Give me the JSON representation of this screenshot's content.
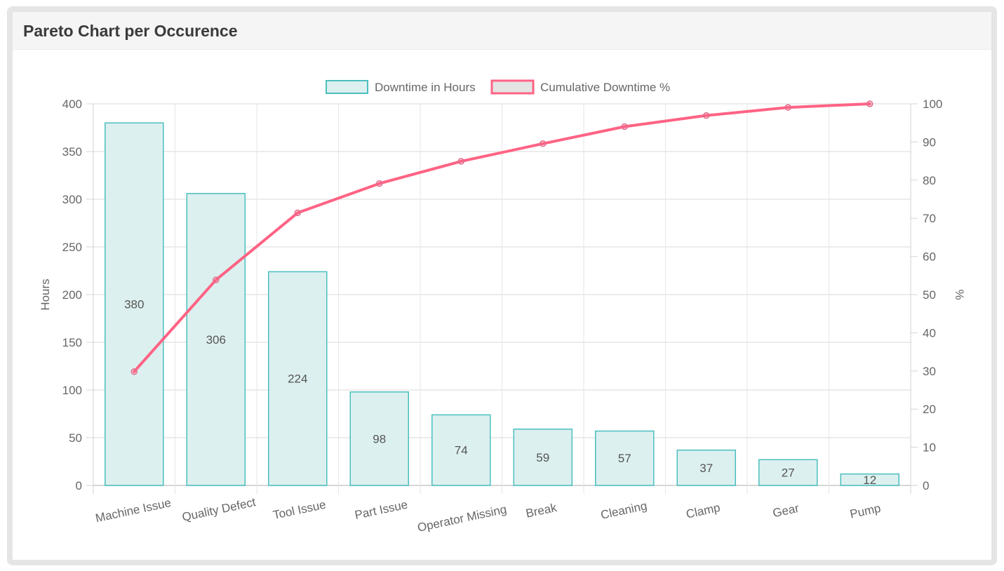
{
  "panel": {
    "title": "Pareto Chart per Occurence"
  },
  "colors": {
    "bar_fill": "#dcf0ef",
    "bar_border": "#4bbfbf",
    "line": "#ff6384",
    "point": "#e06f8f",
    "grid": "#e6e6e6",
    "tick_text": "#666666",
    "header_bg": "#f5f5f5",
    "frame_border": "#e5e5e5"
  },
  "chart_data": {
    "type": "bar",
    "title": "Pareto Chart per Occurence",
    "categories": [
      "Machine Issue",
      "Quality Defect",
      "Tool Issue",
      "Part Issue",
      "Operator Missing",
      "Break",
      "Cleaning",
      "Clamp",
      "Gear",
      "Pump"
    ],
    "series": [
      {
        "name": "Downtime in Hours",
        "type": "bar",
        "axis": "left",
        "values": [
          380,
          306,
          224,
          98,
          74,
          59,
          57,
          37,
          27,
          12
        ]
      },
      {
        "name": "Cumulative Downtime %",
        "type": "line",
        "axis": "right",
        "values": [
          29.83,
          53.85,
          71.43,
          79.12,
          84.93,
          89.56,
          94.03,
          96.94,
          99.06,
          100
        ]
      }
    ],
    "xlabel": "",
    "ylabel": "Hours",
    "ylabel_right": "%",
    "ylim": [
      0,
      400
    ],
    "ylim_right": [
      0,
      100
    ],
    "yticks": [
      0,
      50,
      100,
      150,
      200,
      250,
      300,
      350,
      400
    ],
    "yticks_right": [
      0,
      10,
      20,
      30,
      40,
      50,
      60,
      70,
      80,
      90,
      100
    ],
    "grid": true,
    "legend_position": "top",
    "data_labels": true
  }
}
